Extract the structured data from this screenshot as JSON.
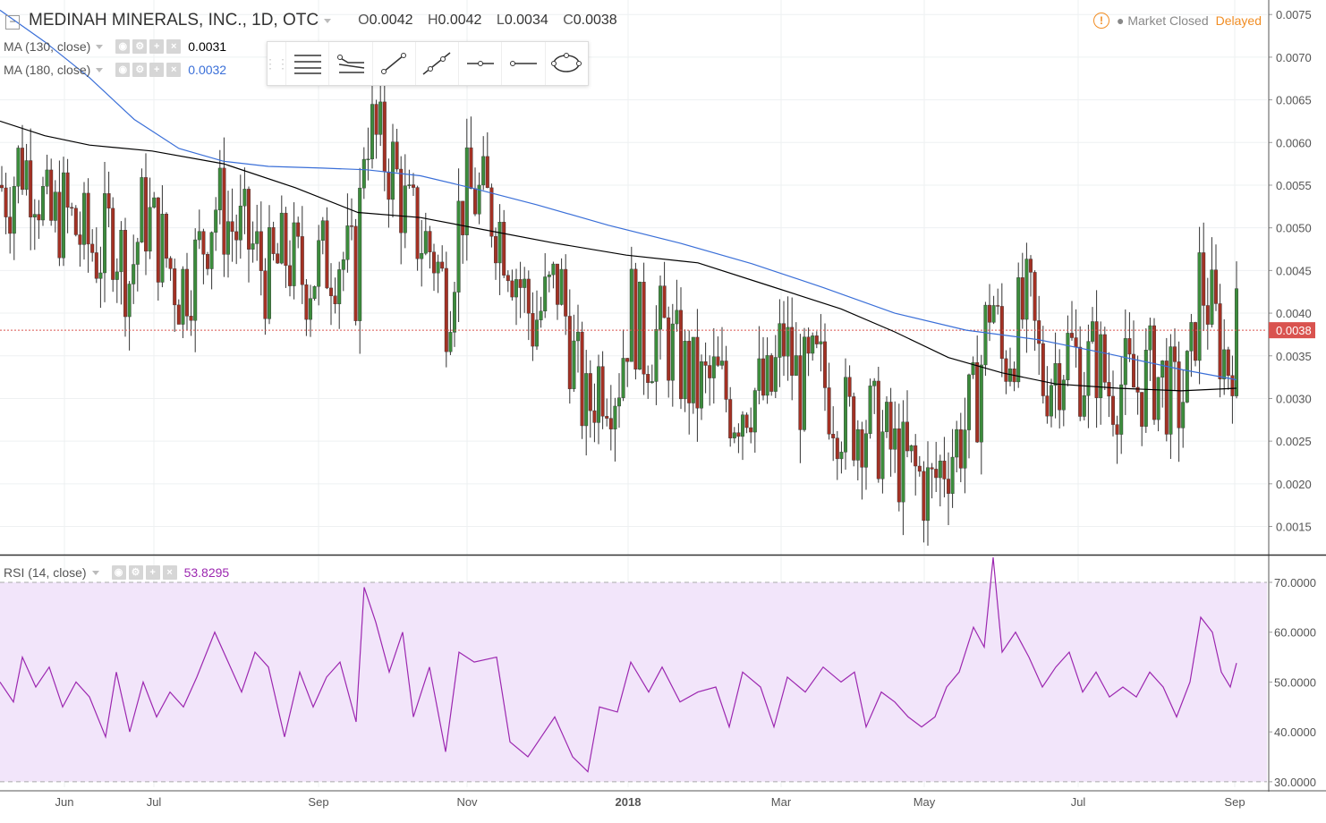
{
  "header": {
    "title": "MEDINAH MINERALS, INC., 1D, OTC",
    "ohlc": [
      {
        "k": "O",
        "v": "0.0042"
      },
      {
        "k": "H",
        "v": "0.0042"
      },
      {
        "k": "L",
        "v": "0.0034"
      },
      {
        "k": "C",
        "v": "0.0038"
      }
    ],
    "market_status": "Market Closed",
    "delayed": "Delayed",
    "warn_icon": "warning-icon",
    "collapse_icon": "minus-icon"
  },
  "indicators": {
    "ma130": {
      "label": "MA (130, close)",
      "value": "0.0031",
      "color": "#000000"
    },
    "ma180": {
      "label": "MA (180, close)",
      "value": "0.0032",
      "color": "#3a6fd8"
    },
    "rsi": {
      "label": "RSI (14, close)",
      "value": "53.8295",
      "color": "#9c27b0"
    }
  },
  "controls": {
    "eye": "◉",
    "gear": "⚙",
    "plus": "+",
    "close": "×"
  },
  "toolbar": {
    "tools": [
      "horizontal-ray-icon",
      "ray-path-icon",
      "trend-line-icon",
      "extended-line-icon",
      "horizontal-line-icon",
      "ray-icon",
      "ellipse-icon"
    ]
  },
  "colors": {
    "up": "#3c8c3c",
    "down": "#a33124",
    "ma130": "#000000",
    "ma180": "#3a6fd8",
    "rsi": "#9c27b0",
    "rsi_bg": "#f2e5fa",
    "last_price": "#d9534f"
  },
  "chart_data": {
    "type": "candlestick",
    "title": "MEDINAH MINERALS, INC., 1D, OTC",
    "last_price": "0.0038",
    "price_axis": {
      "ticks": [
        "0.0075",
        "0.0070",
        "0.0065",
        "0.0060",
        "0.0055",
        "0.0050",
        "0.0045",
        "0.0040",
        "0.0035",
        "0.0030",
        "0.0025",
        "0.0020",
        "0.0015"
      ],
      "range": [
        0.00117,
        0.00767
      ]
    },
    "rsi_axis": {
      "ticks": [
        "70.0000",
        "60.0000",
        "50.0000",
        "40.0000",
        "30.0000"
      ],
      "range": [
        28.9,
        75.2
      ],
      "band": [
        30,
        70
      ]
    },
    "x_labels": [
      {
        "label": "Jun",
        "bold": false
      },
      {
        "label": "Jul",
        "bold": false
      },
      {
        "label": "Sep",
        "bold": false
      },
      {
        "label": "Nov",
        "bold": false
      },
      {
        "label": "2018",
        "bold": true
      },
      {
        "label": "Mar",
        "bold": false
      },
      {
        "label": "May",
        "bold": false
      },
      {
        "label": "Jul",
        "bold": false
      },
      {
        "label": "Sep",
        "bold": false
      }
    ],
    "price_points": [
      {
        "x": 0,
        "c": 0.0055
      },
      {
        "x": 10,
        "c": 0.0054
      },
      {
        "x": 22,
        "c": 0.0058
      },
      {
        "x": 40,
        "c": 0.0056
      },
      {
        "x": 55,
        "c": 0.005
      },
      {
        "x": 70,
        "c": 0.0052
      },
      {
        "x": 90,
        "c": 0.0049
      },
      {
        "x": 110,
        "c": 0.0047
      },
      {
        "x": 125,
        "c": 0.005
      },
      {
        "x": 145,
        "c": 0.0044
      },
      {
        "x": 160,
        "c": 0.0052
      },
      {
        "x": 180,
        "c": 0.0048
      },
      {
        "x": 200,
        "c": 0.0043
      },
      {
        "x": 220,
        "c": 0.0046
      },
      {
        "x": 240,
        "c": 0.0053
      },
      {
        "x": 260,
        "c": 0.005
      },
      {
        "x": 280,
        "c": 0.0048
      },
      {
        "x": 300,
        "c": 0.0044
      },
      {
        "x": 320,
        "c": 0.0047
      },
      {
        "x": 340,
        "c": 0.0044
      },
      {
        "x": 360,
        "c": 0.0046
      },
      {
        "x": 380,
        "c": 0.0047
      },
      {
        "x": 398,
        "c": 0.0044
      },
      {
        "x": 408,
        "c": 0.0063
      },
      {
        "x": 420,
        "c": 0.006
      },
      {
        "x": 440,
        "c": 0.0057
      },
      {
        "x": 455,
        "c": 0.0051
      },
      {
        "x": 470,
        "c": 0.0049
      },
      {
        "x": 485,
        "c": 0.0047
      },
      {
        "x": 500,
        "c": 0.0041
      },
      {
        "x": 515,
        "c": 0.0053
      },
      {
        "x": 530,
        "c": 0.0054
      },
      {
        "x": 550,
        "c": 0.0052
      },
      {
        "x": 565,
        "c": 0.0049
      },
      {
        "x": 580,
        "c": 0.0044
      },
      {
        "x": 595,
        "c": 0.0039
      },
      {
        "x": 610,
        "c": 0.0041
      },
      {
        "x": 625,
        "c": 0.0044
      },
      {
        "x": 640,
        "c": 0.0035
      },
      {
        "x": 655,
        "c": 0.0028
      },
      {
        "x": 670,
        "c": 0.0033
      },
      {
        "x": 690,
        "c": 0.0032
      },
      {
        "x": 705,
        "c": 0.0041
      },
      {
        "x": 720,
        "c": 0.0036
      },
      {
        "x": 740,
        "c": 0.0038
      },
      {
        "x": 760,
        "c": 0.0034
      },
      {
        "x": 780,
        "c": 0.0031
      },
      {
        "x": 800,
        "c": 0.0032
      },
      {
        "x": 820,
        "c": 0.0029
      },
      {
        "x": 840,
        "c": 0.0031
      },
      {
        "x": 860,
        "c": 0.003
      },
      {
        "x": 875,
        "c": 0.0037
      },
      {
        "x": 895,
        "c": 0.0031
      },
      {
        "x": 915,
        "c": 0.0033
      },
      {
        "x": 935,
        "c": 0.0029
      },
      {
        "x": 950,
        "c": 0.0027
      },
      {
        "x": 965,
        "c": 0.0028
      },
      {
        "x": 980,
        "c": 0.0026
      },
      {
        "x": 995,
        "c": 0.0024
      },
      {
        "x": 1010,
        "c": 0.0022
      },
      {
        "x": 1025,
        "c": 0.0021
      },
      {
        "x": 1040,
        "c": 0.0019
      },
      {
        "x": 1055,
        "c": 0.0023
      },
      {
        "x": 1070,
        "c": 0.0025
      },
      {
        "x": 1090,
        "c": 0.0029
      },
      {
        "x": 1108,
        "c": 0.0043
      },
      {
        "x": 1120,
        "c": 0.0034
      },
      {
        "x": 1135,
        "c": 0.0038
      },
      {
        "x": 1150,
        "c": 0.0041
      },
      {
        "x": 1165,
        "c": 0.0032
      },
      {
        "x": 1180,
        "c": 0.0034
      },
      {
        "x": 1195,
        "c": 0.0036
      },
      {
        "x": 1210,
        "c": 0.0033
      },
      {
        "x": 1225,
        "c": 0.0035
      },
      {
        "x": 1240,
        "c": 0.0031
      },
      {
        "x": 1255,
        "c": 0.0032
      },
      {
        "x": 1270,
        "c": 0.0031
      },
      {
        "x": 1285,
        "c": 0.0033
      },
      {
        "x": 1300,
        "c": 0.0032
      },
      {
        "x": 1315,
        "c": 0.0029
      },
      {
        "x": 1330,
        "c": 0.0032
      },
      {
        "x": 1340,
        "c": 0.0044
      },
      {
        "x": 1352,
        "c": 0.0041
      },
      {
        "x": 1362,
        "c": 0.0037
      },
      {
        "x": 1372,
        "c": 0.0034
      },
      {
        "x": 1382,
        "c": 0.0038
      }
    ],
    "ma130_points": [
      {
        "x": 0,
        "v": 0.00625
      },
      {
        "x": 50,
        "v": 0.00608
      },
      {
        "x": 100,
        "v": 0.00597
      },
      {
        "x": 170,
        "v": 0.0059
      },
      {
        "x": 250,
        "v": 0.00575
      },
      {
        "x": 330,
        "v": 0.00547
      },
      {
        "x": 400,
        "v": 0.00518
      },
      {
        "x": 470,
        "v": 0.00512
      },
      {
        "x": 540,
        "v": 0.00498
      },
      {
        "x": 620,
        "v": 0.00482
      },
      {
        "x": 700,
        "v": 0.00468
      },
      {
        "x": 780,
        "v": 0.00459
      },
      {
        "x": 860,
        "v": 0.00432
      },
      {
        "x": 940,
        "v": 0.00405
      },
      {
        "x": 1000,
        "v": 0.00378
      },
      {
        "x": 1060,
        "v": 0.00348
      },
      {
        "x": 1120,
        "v": 0.0033
      },
      {
        "x": 1180,
        "v": 0.00317
      },
      {
        "x": 1250,
        "v": 0.00312
      },
      {
        "x": 1320,
        "v": 0.00309
      },
      {
        "x": 1382,
        "v": 0.00312
      }
    ],
    "ma180_points": [
      {
        "x": 0,
        "v": 0.00755
      },
      {
        "x": 50,
        "v": 0.00718
      },
      {
        "x": 100,
        "v": 0.00676
      },
      {
        "x": 150,
        "v": 0.00627
      },
      {
        "x": 200,
        "v": 0.00593
      },
      {
        "x": 250,
        "v": 0.00578
      },
      {
        "x": 300,
        "v": 0.00572
      },
      {
        "x": 360,
        "v": 0.0057
      },
      {
        "x": 410,
        "v": 0.00568
      },
      {
        "x": 470,
        "v": 0.00561
      },
      {
        "x": 530,
        "v": 0.00546
      },
      {
        "x": 600,
        "v": 0.00527
      },
      {
        "x": 680,
        "v": 0.00503
      },
      {
        "x": 760,
        "v": 0.00482
      },
      {
        "x": 840,
        "v": 0.00458
      },
      {
        "x": 920,
        "v": 0.0043
      },
      {
        "x": 1000,
        "v": 0.004
      },
      {
        "x": 1080,
        "v": 0.0038
      },
      {
        "x": 1160,
        "v": 0.00369
      },
      {
        "x": 1240,
        "v": 0.00352
      },
      {
        "x": 1320,
        "v": 0.00334
      },
      {
        "x": 1382,
        "v": 0.00322
      }
    ],
    "rsi_points": [
      {
        "x": 0,
        "v": 50
      },
      {
        "x": 15,
        "v": 46
      },
      {
        "x": 25,
        "v": 55
      },
      {
        "x": 40,
        "v": 49
      },
      {
        "x": 55,
        "v": 53
      },
      {
        "x": 70,
        "v": 45
      },
      {
        "x": 85,
        "v": 50
      },
      {
        "x": 100,
        "v": 47
      },
      {
        "x": 118,
        "v": 39
      },
      {
        "x": 130,
        "v": 52
      },
      {
        "x": 145,
        "v": 40
      },
      {
        "x": 160,
        "v": 50
      },
      {
        "x": 175,
        "v": 43
      },
      {
        "x": 190,
        "v": 48
      },
      {
        "x": 205,
        "v": 45
      },
      {
        "x": 220,
        "v": 51
      },
      {
        "x": 240,
        "v": 60
      },
      {
        "x": 255,
        "v": 54
      },
      {
        "x": 270,
        "v": 48
      },
      {
        "x": 285,
        "v": 56
      },
      {
        "x": 300,
        "v": 53
      },
      {
        "x": 318,
        "v": 39
      },
      {
        "x": 335,
        "v": 52
      },
      {
        "x": 350,
        "v": 45
      },
      {
        "x": 365,
        "v": 51
      },
      {
        "x": 380,
        "v": 54
      },
      {
        "x": 398,
        "v": 42
      },
      {
        "x": 407,
        "v": 69
      },
      {
        "x": 420,
        "v": 62
      },
      {
        "x": 435,
        "v": 52
      },
      {
        "x": 450,
        "v": 60
      },
      {
        "x": 462,
        "v": 43
      },
      {
        "x": 480,
        "v": 53
      },
      {
        "x": 498,
        "v": 36
      },
      {
        "x": 513,
        "v": 56
      },
      {
        "x": 530,
        "v": 54
      },
      {
        "x": 555,
        "v": 55
      },
      {
        "x": 570,
        "v": 38
      },
      {
        "x": 590,
        "v": 35
      },
      {
        "x": 605,
        "v": 39
      },
      {
        "x": 620,
        "v": 43
      },
      {
        "x": 640,
        "v": 35
      },
      {
        "x": 657,
        "v": 32
      },
      {
        "x": 670,
        "v": 45
      },
      {
        "x": 690,
        "v": 44
      },
      {
        "x": 705,
        "v": 54
      },
      {
        "x": 725,
        "v": 48
      },
      {
        "x": 740,
        "v": 53
      },
      {
        "x": 760,
        "v": 46
      },
      {
        "x": 780,
        "v": 48
      },
      {
        "x": 800,
        "v": 49
      },
      {
        "x": 815,
        "v": 41
      },
      {
        "x": 830,
        "v": 52
      },
      {
        "x": 850,
        "v": 49
      },
      {
        "x": 865,
        "v": 41
      },
      {
        "x": 880,
        "v": 51
      },
      {
        "x": 900,
        "v": 48
      },
      {
        "x": 920,
        "v": 53
      },
      {
        "x": 940,
        "v": 50
      },
      {
        "x": 955,
        "v": 52
      },
      {
        "x": 968,
        "v": 41
      },
      {
        "x": 985,
        "v": 48
      },
      {
        "x": 1000,
        "v": 46
      },
      {
        "x": 1015,
        "v": 43
      },
      {
        "x": 1030,
        "v": 41
      },
      {
        "x": 1045,
        "v": 43
      },
      {
        "x": 1058,
        "v": 49
      },
      {
        "x": 1072,
        "v": 52
      },
      {
        "x": 1088,
        "v": 61
      },
      {
        "x": 1100,
        "v": 57
      },
      {
        "x": 1110,
        "v": 75
      },
      {
        "x": 1120,
        "v": 56
      },
      {
        "x": 1135,
        "v": 60
      },
      {
        "x": 1150,
        "v": 55
      },
      {
        "x": 1165,
        "v": 49
      },
      {
        "x": 1180,
        "v": 53
      },
      {
        "x": 1195,
        "v": 56
      },
      {
        "x": 1210,
        "v": 48
      },
      {
        "x": 1225,
        "v": 52
      },
      {
        "x": 1240,
        "v": 47
      },
      {
        "x": 1255,
        "v": 49
      },
      {
        "x": 1270,
        "v": 47
      },
      {
        "x": 1285,
        "v": 52
      },
      {
        "x": 1300,
        "v": 49
      },
      {
        "x": 1315,
        "v": 43
      },
      {
        "x": 1330,
        "v": 50
      },
      {
        "x": 1342,
        "v": 63
      },
      {
        "x": 1355,
        "v": 60
      },
      {
        "x": 1365,
        "v": 52
      },
      {
        "x": 1375,
        "v": 49
      },
      {
        "x": 1382,
        "v": 53.8
      }
    ]
  }
}
